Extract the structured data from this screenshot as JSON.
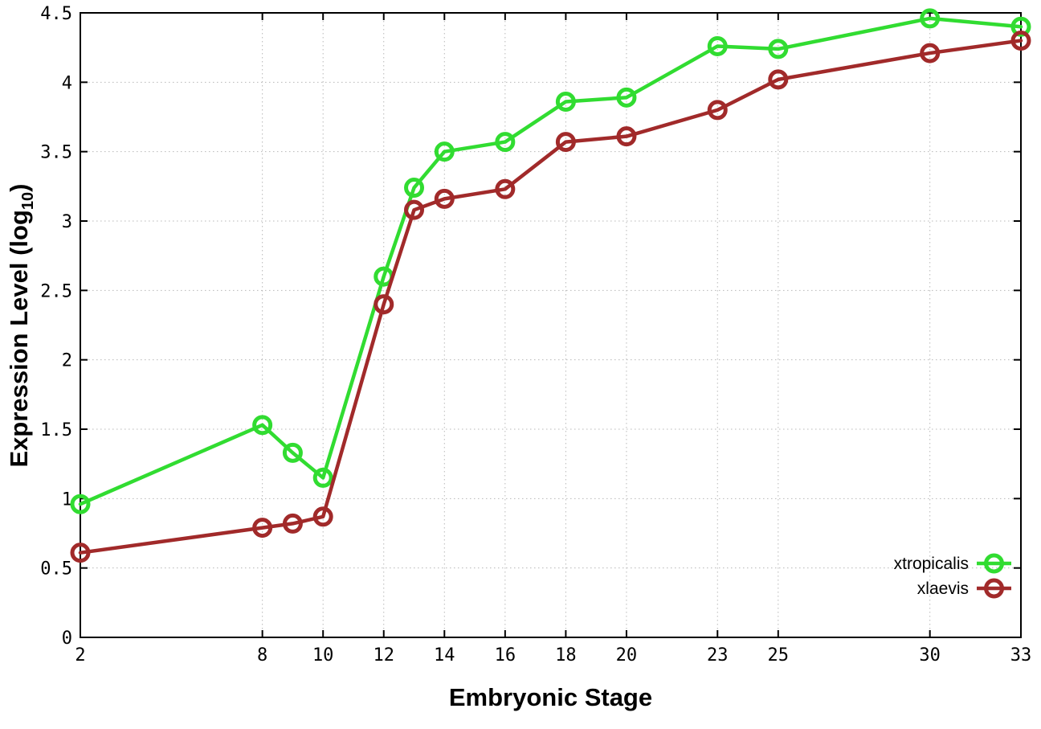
{
  "chart_data": {
    "type": "line",
    "title": "",
    "xlabel": "Embryonic Stage",
    "ylabel": "Expression Level (log10)",
    "ylabel_parts": {
      "prefix": "Expression Level (log",
      "sub": "10",
      "suffix": ")"
    },
    "x": [
      2,
      8,
      9,
      10,
      12,
      13,
      14,
      16,
      18,
      20,
      23,
      25,
      30,
      33
    ],
    "x_tick_labels": [
      2,
      8,
      10,
      12,
      14,
      16,
      18,
      20,
      23,
      25,
      30,
      33
    ],
    "y_tick_labels": [
      0,
      0.5,
      1,
      1.5,
      2,
      2.5,
      3,
      3.5,
      4,
      4.5
    ],
    "xlim": [
      2,
      33
    ],
    "ylim": [
      0,
      4.5
    ],
    "grid": true,
    "grid_style": "dotted",
    "marker": "open-circle",
    "legend_position": "inside-right",
    "series": [
      {
        "name": "xtropicalis",
        "color": "#31dc31",
        "values": [
          0.96,
          1.53,
          1.33,
          1.15,
          2.6,
          3.24,
          3.5,
          3.57,
          3.86,
          3.89,
          4.26,
          4.24,
          4.46,
          4.4
        ]
      },
      {
        "name": "xlaevis",
        "color": "#a12a2a",
        "values": [
          0.61,
          0.79,
          0.82,
          0.87,
          2.4,
          3.08,
          3.16,
          3.23,
          3.57,
          3.61,
          3.8,
          4.02,
          4.21,
          4.3
        ]
      }
    ]
  },
  "colors": {
    "background": "#ffffff",
    "axis": "#000000",
    "grid": "#b8b8b8",
    "tick_text": "#000000"
  }
}
